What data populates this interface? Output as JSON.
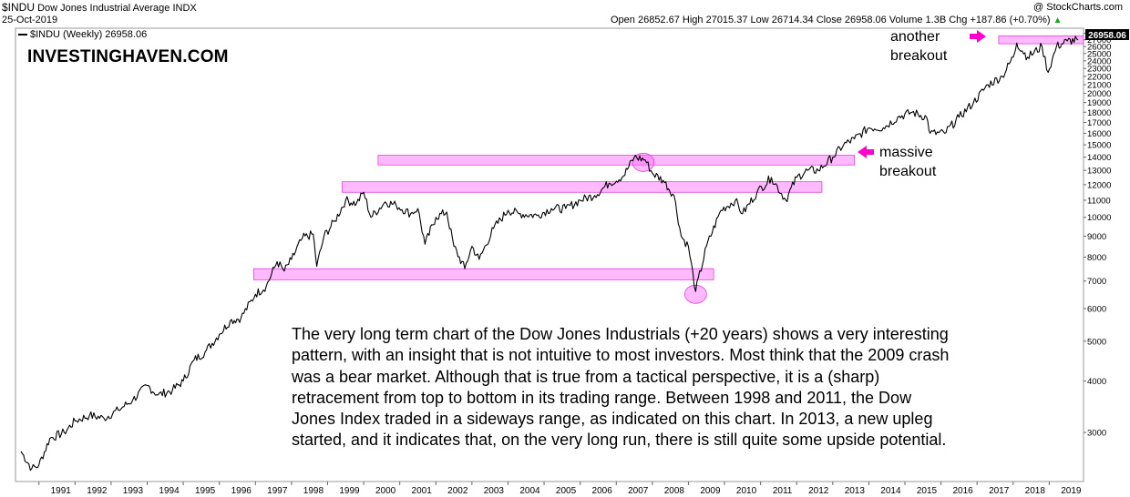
{
  "header": {
    "symbol": "$INDU",
    "name": "Dow Jones Industrial Average",
    "exchange": "INDX",
    "date": "25-Oct-2019",
    "credit": "@ StockCharts.com",
    "ohlc_line": "Open 26852.67  High 27015.37  Low 26714.34  Close 26958.06  Volume 1.3B  Chg +187.86 (+0.70%)",
    "chg_arrow": "▲",
    "legend_label": "$INDU (Weekly) 26958.06",
    "last_price": "26958.06"
  },
  "brand": "INVESTINGHAVEN.COM",
  "annotations": {
    "another_1": "another",
    "another_2": "breakout",
    "massive_1": "massive",
    "massive_2": "breakout"
  },
  "description": [
    "The very long term chart of the Dow Jones Industrials (+20 years) shows a very interesting",
    "pattern, with an insight that is not intuitive to most investors. Most think that the 2009 crash",
    "was a bear market. Although that is true from a tactical perspective, it is a (sharp)",
    "retracement from top to bottom in its trading range. Between 1998 and 2011, the Dow",
    "Jones Index traded in a sideways range, as indicated on this chart. In 2013, a new upleg",
    "started, and it indicates that, on the very long run, there is still quite some upside potential."
  ],
  "colors": {
    "line": "#000000",
    "highlight": "#ff66ff",
    "arrow": "#ff00cc",
    "price_tag": "#000000"
  },
  "chart_data": {
    "type": "line",
    "scale": "log",
    "series": [
      {
        "x": [
          1990.5,
          1990.8,
          1991.0,
          1991.3,
          1991.7,
          1992.0,
          1992.4,
          1992.8,
          1993.2,
          1993.6,
          1994.0,
          1994.3,
          1994.7,
          1995.0,
          1995.3,
          1995.6,
          1996.0,
          1996.3,
          1996.6,
          1997.0,
          1997.3,
          1997.6,
          1997.8,
          1998.0,
          1998.3,
          1998.6,
          1998.7,
          1998.9,
          1999.2,
          1999.5,
          1999.8,
          2000.0,
          2000.2,
          2000.6,
          2000.9,
          2001.3,
          2001.5,
          2001.7,
          2002.0,
          2002.3,
          2002.5,
          2002.8,
          2003.0,
          2003.2,
          2003.6,
          2004.0,
          2004.3,
          2004.8,
          2005.2,
          2005.6,
          2006.0,
          2006.4,
          2006.8,
          2007.2,
          2007.5,
          2007.8,
          2008.0,
          2008.3,
          2008.6,
          2008.8,
          2009.0,
          2009.2,
          2009.5,
          2009.9,
          2010.3,
          2010.5,
          2010.9,
          2011.3,
          2011.7,
          2012.0,
          2012.3,
          2012.6,
          2013.0,
          2013.3,
          2013.6,
          2014.0,
          2014.4,
          2014.8,
          2015.2,
          2015.6,
          2015.7,
          2016.1,
          2016.5,
          2016.9,
          2017.3,
          2017.7,
          2018.0,
          2018.1,
          2018.4,
          2018.8,
          2018.97,
          2019.2,
          2019.5,
          2019.8
        ],
        "values": [
          2700,
          2450,
          2500,
          2900,
          3000,
          3200,
          3300,
          3250,
          3400,
          3600,
          3900,
          3700,
          3800,
          4000,
          4500,
          4700,
          5200,
          5600,
          5700,
          6500,
          6800,
          7800,
          7400,
          7900,
          8900,
          9100,
          7600,
          9000,
          9800,
          11000,
          10800,
          11500,
          10000,
          10900,
          10700,
          10200,
          10500,
          8600,
          10000,
          10300,
          8500,
          7500,
          8500,
          7900,
          9400,
          10400,
          10200,
          10100,
          10500,
          10500,
          11000,
          11300,
          12100,
          12600,
          14000,
          13800,
          12800,
          12300,
          11300,
          9000,
          8500,
          6600,
          8500,
          10400,
          11000,
          10200,
          11500,
          12500,
          11000,
          12500,
          13000,
          13000,
          14000,
          15000,
          15500,
          16500,
          16500,
          17500,
          18000,
          17500,
          16000,
          16000,
          17500,
          19000,
          21000,
          22000,
          24500,
          26500,
          24500,
          26000,
          22500,
          26000,
          26800,
          26958
        ],
        "stroke": "#000000"
      }
    ],
    "xlim": [
      1990.35,
      2019.95
    ],
    "ylim": [
      2280,
      28800
    ],
    "x_ticks": [
      "1991",
      "1992",
      "1993",
      "1994",
      "1995",
      "1996",
      "1997",
      "1998",
      "1999",
      "2000",
      "2001",
      "2002",
      "2003",
      "2004",
      "2005",
      "2006",
      "2007",
      "2008",
      "2009",
      "2010",
      "2011",
      "2012",
      "2013",
      "2014",
      "2015",
      "2016",
      "2017",
      "2018",
      "2019"
    ],
    "y_ticks": [
      3000,
      4000,
      5000,
      6000,
      7000,
      8000,
      9000,
      10000,
      11000,
      12000,
      13000,
      14000,
      15000,
      16000,
      17000,
      18000,
      19000,
      20000,
      21000,
      22000,
      23000,
      24000,
      25000,
      26000,
      27000,
      28000
    ],
    "grid": false,
    "bands": [
      {
        "x": [
          1996.95,
          2009.7
        ],
        "y": [
          7050,
          7500
        ]
      },
      {
        "x": [
          1999.4,
          2012.7
        ],
        "y": [
          11500,
          12200
        ]
      },
      {
        "x": [
          2000.4,
          2013.6
        ],
        "y": [
          13400,
          14150
        ]
      },
      {
        "x": [
          2017.6,
          2019.95
        ],
        "y": [
          26400,
          27600
        ]
      }
    ],
    "circles": [
      {
        "x": 2007.75,
        "y": 13600
      },
      {
        "x": 2009.2,
        "y": 6500
      }
    ]
  }
}
